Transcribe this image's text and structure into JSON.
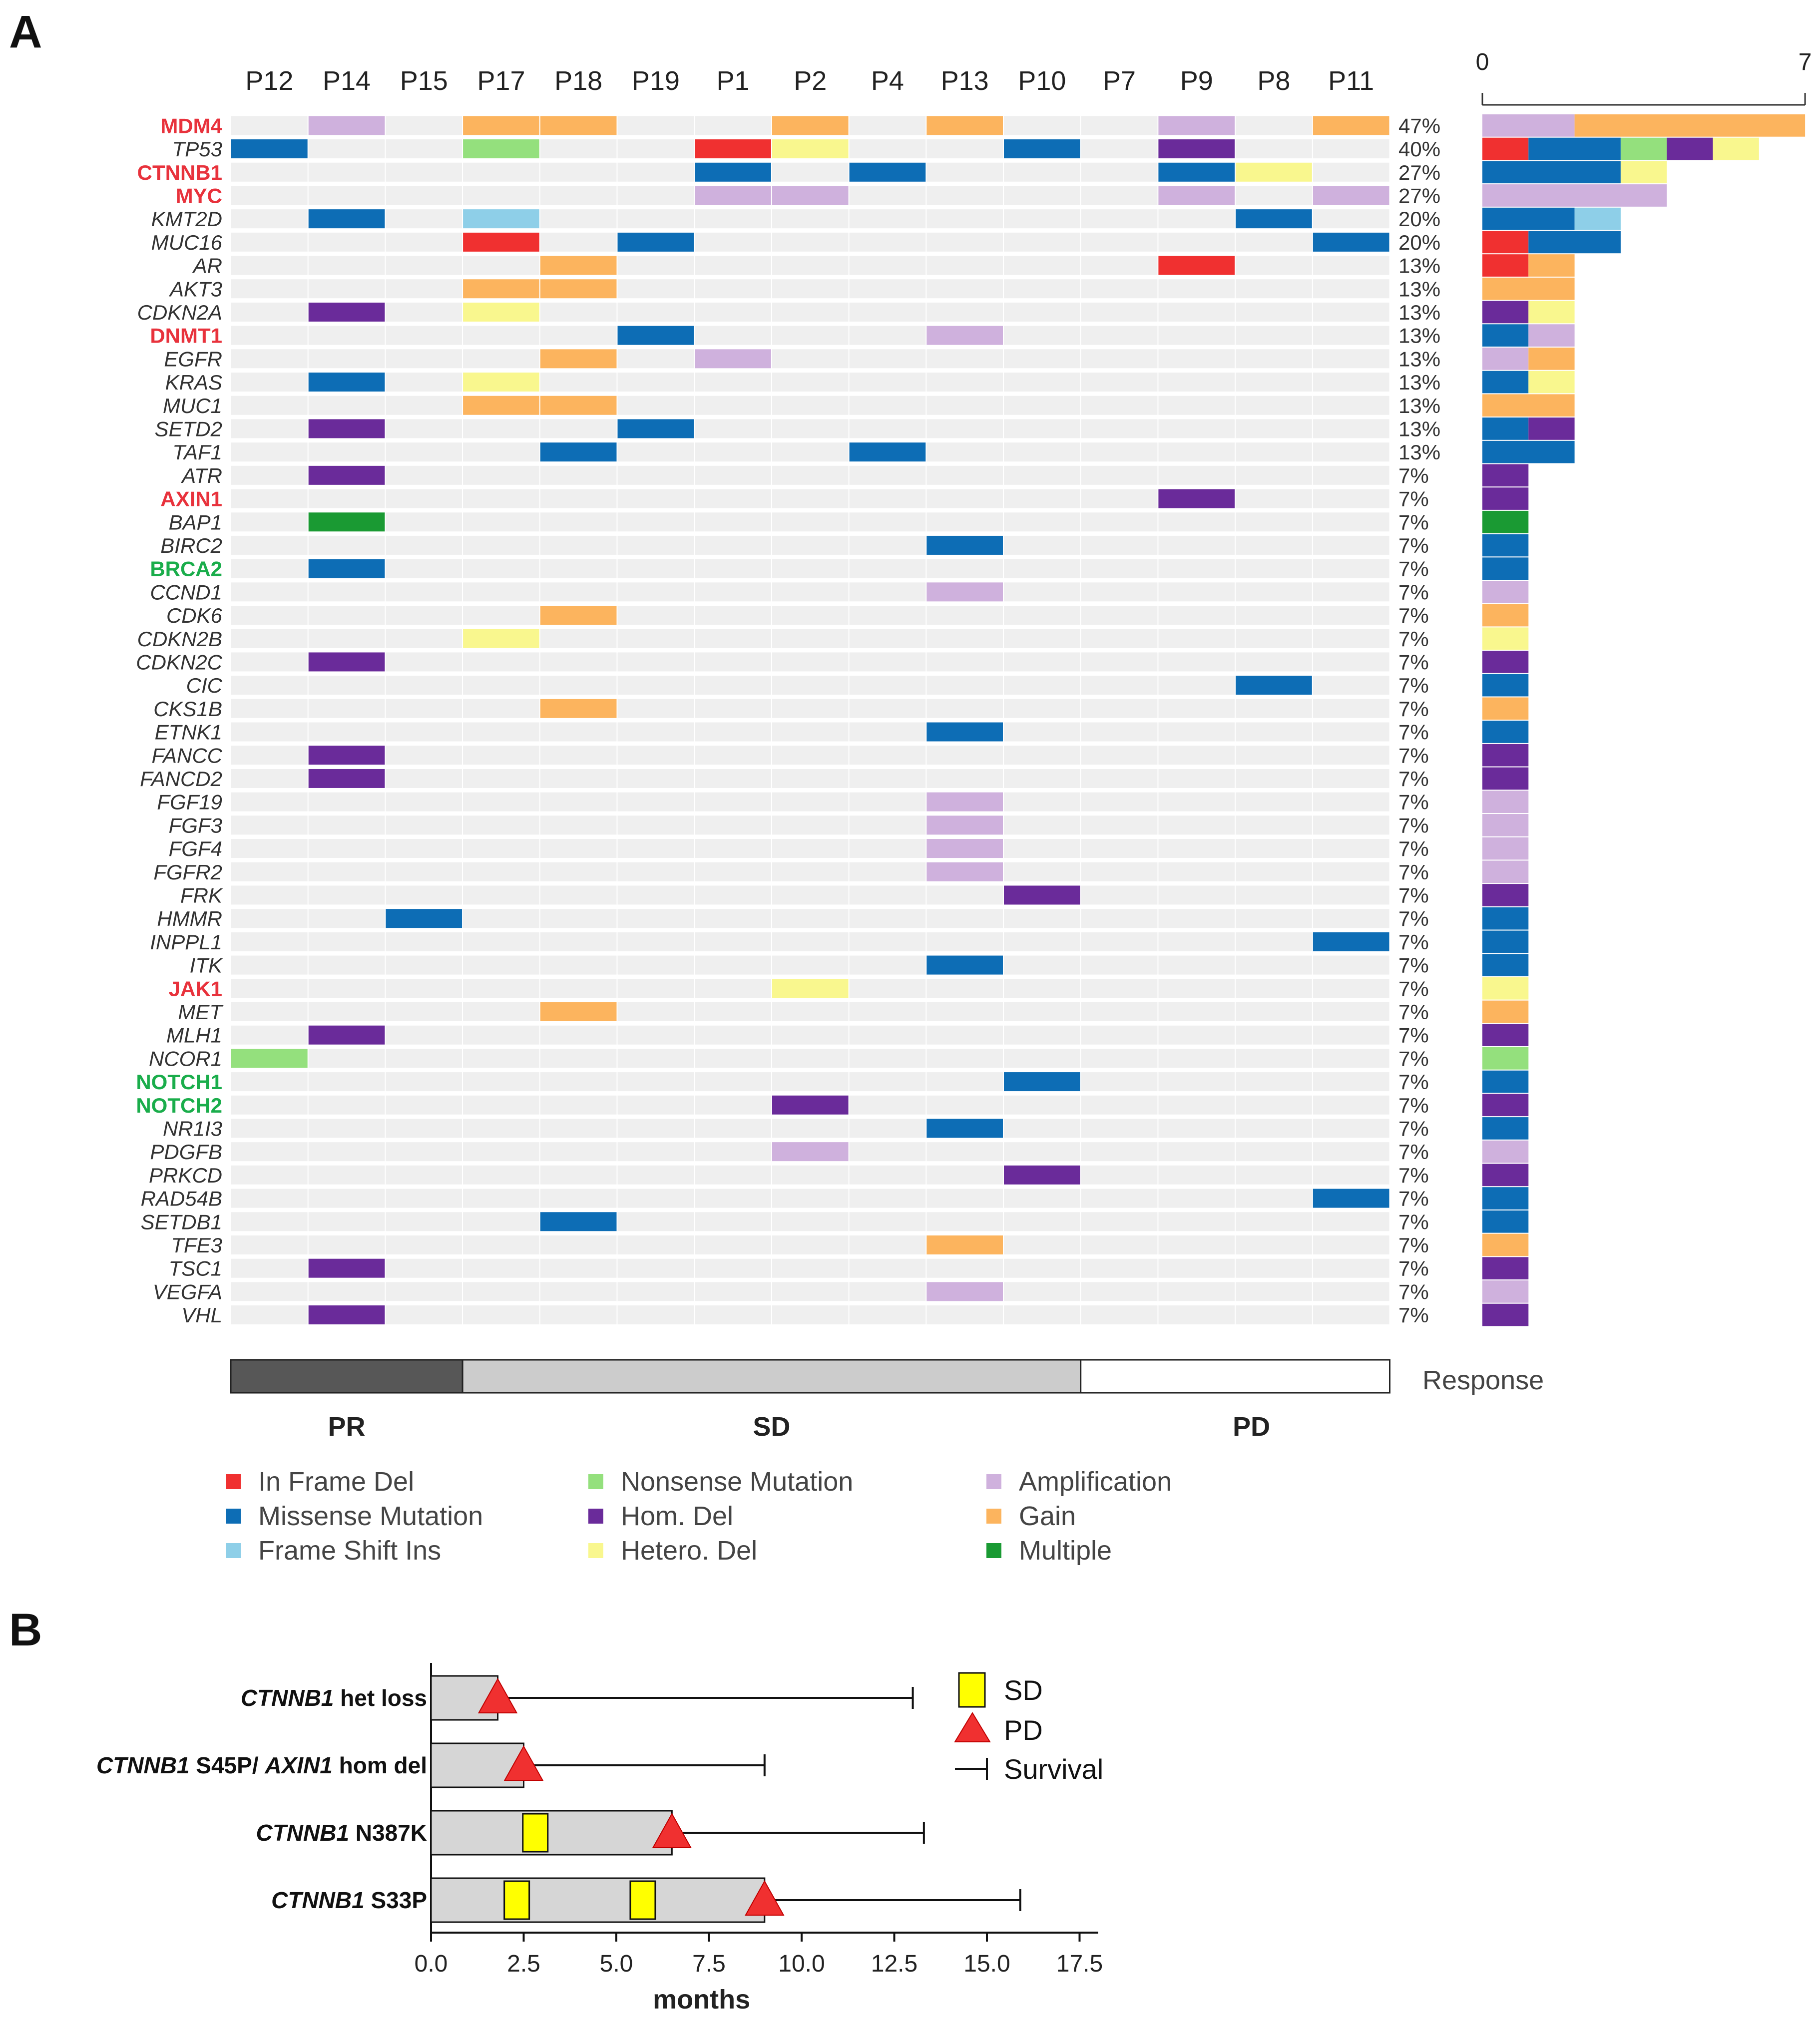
{
  "panel_a_letter": "A",
  "panel_b_letter": "B",
  "chart_data": [
    {
      "type": "heatmap",
      "title": "",
      "patients": [
        "P12",
        "P14",
        "P15",
        "P17",
        "P18",
        "P19",
        "P1",
        "P2",
        "P4",
        "P13",
        "P10",
        "P7",
        "P9",
        "P8",
        "P11"
      ],
      "genes": [
        {
          "name": "MDM4",
          "style": "red",
          "pct": "47%",
          "cells": {
            "P14": "amp",
            "P17": "gain",
            "P18": "gain",
            "P2": "gain",
            "P13": "gain",
            "P9": "amp",
            "P11": "gain"
          },
          "bar": [
            [
              "amp",
              2
            ],
            [
              "gain",
              5
            ]
          ]
        },
        {
          "name": "TP53",
          "style": "normal",
          "pct": "40%",
          "cells": {
            "P12": "missense",
            "P17": "nonsense",
            "P1": "inframe",
            "P2": "hetdel",
            "P10": "missense",
            "P9": "homdel"
          },
          "bar": [
            [
              "inframe",
              1
            ],
            [
              "missense",
              2
            ],
            [
              "nonsense",
              1
            ],
            [
              "homdel",
              1
            ],
            [
              "hetdel",
              1
            ]
          ]
        },
        {
          "name": "CTNNB1",
          "style": "red",
          "pct": "27%",
          "cells": {
            "P1": "missense",
            "P4": "missense",
            "P9": "missense",
            "P8": "hetdel"
          },
          "bar": [
            [
              "missense",
              3
            ],
            [
              "hetdel",
              1
            ]
          ]
        },
        {
          "name": "MYC",
          "style": "red",
          "pct": "27%",
          "cells": {
            "P1": "amp",
            "P2": "amp",
            "P9": "amp",
            "P11": "amp"
          },
          "bar": [
            [
              "amp",
              4
            ]
          ]
        },
        {
          "name": "KMT2D",
          "style": "normal",
          "pct": "20%",
          "cells": {
            "P14": "missense",
            "P17": "frameshift",
            "P8": "missense"
          },
          "bar": [
            [
              "missense",
              2
            ],
            [
              "frameshift",
              1
            ]
          ]
        },
        {
          "name": "MUC16",
          "style": "normal",
          "pct": "20%",
          "cells": {
            "P17": "inframe",
            "P19": "missense",
            "P11": "missense"
          },
          "bar": [
            [
              "inframe",
              1
            ],
            [
              "missense",
              2
            ]
          ]
        },
        {
          "name": "AR",
          "style": "normal",
          "pct": "13%",
          "cells": {
            "P18": "gain",
            "P9": "inframe"
          },
          "bar": [
            [
              "inframe",
              1
            ],
            [
              "gain",
              1
            ]
          ]
        },
        {
          "name": "AKT3",
          "style": "normal",
          "pct": "13%",
          "cells": {
            "P17": "gain",
            "P18": "gain"
          },
          "bar": [
            [
              "gain",
              2
            ]
          ]
        },
        {
          "name": "CDKN2A",
          "style": "normal",
          "pct": "13%",
          "cells": {
            "P14": "homdel",
            "P17": "hetdel"
          },
          "bar": [
            [
              "homdel",
              1
            ],
            [
              "hetdel",
              1
            ]
          ]
        },
        {
          "name": "DNMT1",
          "style": "red",
          "pct": "13%",
          "cells": {
            "P19": "missense",
            "P13": "amp"
          },
          "bar": [
            [
              "missense",
              1
            ],
            [
              "amp",
              1
            ]
          ]
        },
        {
          "name": "EGFR",
          "style": "normal",
          "pct": "13%",
          "cells": {
            "P18": "gain",
            "P1": "amp"
          },
          "bar": [
            [
              "amp",
              1
            ],
            [
              "gain",
              1
            ]
          ]
        },
        {
          "name": "KRAS",
          "style": "normal",
          "pct": "13%",
          "cells": {
            "P14": "missense",
            "P17": "hetdel"
          },
          "bar": [
            [
              "missense",
              1
            ],
            [
              "hetdel",
              1
            ]
          ]
        },
        {
          "name": "MUC1",
          "style": "normal",
          "pct": "13%",
          "cells": {
            "P17": "gain",
            "P18": "gain"
          },
          "bar": [
            [
              "gain",
              2
            ]
          ]
        },
        {
          "name": "SETD2",
          "style": "normal",
          "pct": "13%",
          "cells": {
            "P14": "homdel",
            "P19": "missense"
          },
          "bar": [
            [
              "missense",
              1
            ],
            [
              "homdel",
              1
            ]
          ]
        },
        {
          "name": "TAF1",
          "style": "normal",
          "pct": "13%",
          "cells": {
            "P18": "missense",
            "P4": "missense"
          },
          "bar": [
            [
              "missense",
              2
            ]
          ]
        },
        {
          "name": "ATR",
          "style": "normal",
          "pct": "7%",
          "cells": {
            "P14": "homdel"
          },
          "bar": [
            [
              "homdel",
              1
            ]
          ]
        },
        {
          "name": "AXIN1",
          "style": "red",
          "pct": "7%",
          "cells": {
            "P9": "homdel"
          },
          "bar": [
            [
              "homdel",
              1
            ]
          ]
        },
        {
          "name": "BAP1",
          "style": "normal",
          "pct": "7%",
          "cells": {
            "P14": "multiple"
          },
          "bar": [
            [
              "multiple",
              1
            ]
          ]
        },
        {
          "name": "BIRC2",
          "style": "normal",
          "pct": "7%",
          "cells": {
            "P13": "missense"
          },
          "bar": [
            [
              "missense",
              1
            ]
          ]
        },
        {
          "name": "BRCA2",
          "style": "green",
          "pct": "7%",
          "cells": {
            "P14": "missense"
          },
          "bar": [
            [
              "missense",
              1
            ]
          ]
        },
        {
          "name": "CCND1",
          "style": "normal",
          "pct": "7%",
          "cells": {
            "P13": "amp"
          },
          "bar": [
            [
              "amp",
              1
            ]
          ]
        },
        {
          "name": "CDK6",
          "style": "normal",
          "pct": "7%",
          "cells": {
            "P18": "gain"
          },
          "bar": [
            [
              "gain",
              1
            ]
          ]
        },
        {
          "name": "CDKN2B",
          "style": "normal",
          "pct": "7%",
          "cells": {
            "P17": "hetdel"
          },
          "bar": [
            [
              "hetdel",
              1
            ]
          ]
        },
        {
          "name": "CDKN2C",
          "style": "normal",
          "pct": "7%",
          "cells": {
            "P14": "homdel"
          },
          "bar": [
            [
              "homdel",
              1
            ]
          ]
        },
        {
          "name": "CIC",
          "style": "normal",
          "pct": "7%",
          "cells": {
            "P8": "missense"
          },
          "bar": [
            [
              "missense",
              1
            ]
          ]
        },
        {
          "name": "CKS1B",
          "style": "normal",
          "pct": "7%",
          "cells": {
            "P18": "gain"
          },
          "bar": [
            [
              "gain",
              1
            ]
          ]
        },
        {
          "name": "ETNK1",
          "style": "normal",
          "pct": "7%",
          "cells": {
            "P13": "missense"
          },
          "bar": [
            [
              "missense",
              1
            ]
          ]
        },
        {
          "name": "FANCC",
          "style": "normal",
          "pct": "7%",
          "cells": {
            "P14": "homdel"
          },
          "bar": [
            [
              "homdel",
              1
            ]
          ]
        },
        {
          "name": "FANCD2",
          "style": "normal",
          "pct": "7%",
          "cells": {
            "P14": "homdel"
          },
          "bar": [
            [
              "homdel",
              1
            ]
          ]
        },
        {
          "name": "FGF19",
          "style": "normal",
          "pct": "7%",
          "cells": {
            "P13": "amp"
          },
          "bar": [
            [
              "amp",
              1
            ]
          ]
        },
        {
          "name": "FGF3",
          "style": "normal",
          "pct": "7%",
          "cells": {
            "P13": "amp"
          },
          "bar": [
            [
              "amp",
              1
            ]
          ]
        },
        {
          "name": "FGF4",
          "style": "normal",
          "pct": "7%",
          "cells": {
            "P13": "amp"
          },
          "bar": [
            [
              "amp",
              1
            ]
          ]
        },
        {
          "name": "FGFR2",
          "style": "normal",
          "pct": "7%",
          "cells": {
            "P13": "amp"
          },
          "bar": [
            [
              "amp",
              1
            ]
          ]
        },
        {
          "name": "FRK",
          "style": "normal",
          "pct": "7%",
          "cells": {
            "P10": "homdel"
          },
          "bar": [
            [
              "homdel",
              1
            ]
          ]
        },
        {
          "name": "HMMR",
          "style": "normal",
          "pct": "7%",
          "cells": {
            "P15": "missense"
          },
          "bar": [
            [
              "missense",
              1
            ]
          ]
        },
        {
          "name": "INPPL1",
          "style": "normal",
          "pct": "7%",
          "cells": {
            "P11": "missense"
          },
          "bar": [
            [
              "missense",
              1
            ]
          ]
        },
        {
          "name": "ITK",
          "style": "normal",
          "pct": "7%",
          "cells": {
            "P13": "missense"
          },
          "bar": [
            [
              "missense",
              1
            ]
          ]
        },
        {
          "name": "JAK1",
          "style": "red",
          "pct": "7%",
          "cells": {
            "P2": "hetdel"
          },
          "bar": [
            [
              "hetdel",
              1
            ]
          ]
        },
        {
          "name": "MET",
          "style": "normal",
          "pct": "7%",
          "cells": {
            "P18": "gain"
          },
          "bar": [
            [
              "gain",
              1
            ]
          ]
        },
        {
          "name": "MLH1",
          "style": "normal",
          "pct": "7%",
          "cells": {
            "P14": "homdel"
          },
          "bar": [
            [
              "homdel",
              1
            ]
          ]
        },
        {
          "name": "NCOR1",
          "style": "normal",
          "pct": "7%",
          "cells": {
            "P12": "nonsense"
          },
          "bar": [
            [
              "nonsense",
              1
            ]
          ]
        },
        {
          "name": "NOTCH1",
          "style": "green",
          "pct": "7%",
          "cells": {
            "P10": "missense"
          },
          "bar": [
            [
              "missense",
              1
            ]
          ]
        },
        {
          "name": "NOTCH2",
          "style": "green",
          "pct": "7%",
          "cells": {
            "P2": "homdel"
          },
          "bar": [
            [
              "homdel",
              1
            ]
          ]
        },
        {
          "name": "NR1I3",
          "style": "normal",
          "pct": "7%",
          "cells": {
            "P13": "missense"
          },
          "bar": [
            [
              "missense",
              1
            ]
          ]
        },
        {
          "name": "PDGFB",
          "style": "normal",
          "pct": "7%",
          "cells": {
            "P2": "amp"
          },
          "bar": [
            [
              "amp",
              1
            ]
          ]
        },
        {
          "name": "PRKCD",
          "style": "normal",
          "pct": "7%",
          "cells": {
            "P10": "homdel"
          },
          "bar": [
            [
              "homdel",
              1
            ]
          ]
        },
        {
          "name": "RAD54B",
          "style": "normal",
          "pct": "7%",
          "cells": {
            "P11": "missense"
          },
          "bar": [
            [
              "missense",
              1
            ]
          ]
        },
        {
          "name": "SETDB1",
          "style": "normal",
          "pct": "7%",
          "cells": {
            "P18": "missense"
          },
          "bar": [
            [
              "missense",
              1
            ]
          ]
        },
        {
          "name": "TFE3",
          "style": "normal",
          "pct": "7%",
          "cells": {
            "P13": "gain"
          },
          "bar": [
            [
              "gain",
              1
            ]
          ]
        },
        {
          "name": "TSC1",
          "style": "normal",
          "pct": "7%",
          "cells": {
            "P14": "homdel"
          },
          "bar": [
            [
              "homdel",
              1
            ]
          ]
        },
        {
          "name": "VEGFA",
          "style": "normal",
          "pct": "7%",
          "cells": {
            "P13": "amp"
          },
          "bar": [
            [
              "amp",
              1
            ]
          ]
        },
        {
          "name": "VHL",
          "style": "normal",
          "pct": "7%",
          "cells": {
            "P14": "homdel"
          },
          "bar": [
            [
              "homdel",
              1
            ]
          ]
        }
      ],
      "count_axis": {
        "min": 0,
        "max": 7,
        "tick_labels": [
          "0",
          "7"
        ]
      },
      "alteration_types": [
        {
          "key": "inframe",
          "label": "In Frame Del",
          "color": "#f03030"
        },
        {
          "key": "missense",
          "label": "Missense Mutation",
          "color": "#0d6db5"
        },
        {
          "key": "frameshift",
          "label": "Frame Shift Ins",
          "color": "#8ecfe8"
        },
        {
          "key": "nonsense",
          "label": "Nonsense Mutation",
          "color": "#94e07d"
        },
        {
          "key": "homdel",
          "label": "Hom. Del",
          "color": "#6a2b9a"
        },
        {
          "key": "hetdel",
          "label": "Hetero. Del",
          "color": "#f9f78e"
        },
        {
          "key": "amp",
          "label": "Amplification",
          "color": "#cfb1dd"
        },
        {
          "key": "gain",
          "label": "Gain",
          "color": "#fcb45e"
        },
        {
          "key": "multiple",
          "label": "Multiple",
          "color": "#1a9a33"
        }
      ],
      "response": {
        "label": "Response",
        "groups": [
          {
            "name": "PR",
            "patients": 3,
            "color": "#575757"
          },
          {
            "name": "SD",
            "patients": 8,
            "color": "#cccccc"
          },
          {
            "name": "PD",
            "patients": 4,
            "color": "#ffffff"
          }
        ]
      }
    },
    {
      "type": "swimmer",
      "xlabel": "months",
      "xlim": [
        0,
        18
      ],
      "x_ticks": [
        "0.0",
        "2.5",
        "5.0",
        "7.5",
        "10.0",
        "12.5",
        "15.0",
        "17.5"
      ],
      "rows": [
        {
          "label_italic": "CTNNB1",
          "label_rest": " het loss",
          "bar_end": 1.8,
          "sd": [],
          "pd": 1.8,
          "survival": 13.0
        },
        {
          "label_italic": "CTNNB1",
          "label_rest": " S45P/ ",
          "label_italic2": "AXIN1",
          "label_rest2": " hom del",
          "bar_end": 2.5,
          "sd": [],
          "pd": 2.5,
          "survival": 9.0
        },
        {
          "label_italic": "CTNNB1",
          "label_rest": " N387K",
          "bar_end": 6.5,
          "sd": [
            2.8
          ],
          "pd": 6.5,
          "survival": 13.3
        },
        {
          "label_italic": "CTNNB1",
          "label_rest": " S33P",
          "bar_end": 9.0,
          "sd": [
            2.3,
            5.7
          ],
          "pd": 9.0,
          "survival": 15.9
        }
      ],
      "legend": [
        {
          "key": "sd",
          "label": "SD",
          "color": "#ffff00"
        },
        {
          "key": "pd",
          "label": "PD",
          "color": "#f03030"
        },
        {
          "key": "survival",
          "label": "Survival",
          "color": "#111111"
        }
      ]
    }
  ]
}
